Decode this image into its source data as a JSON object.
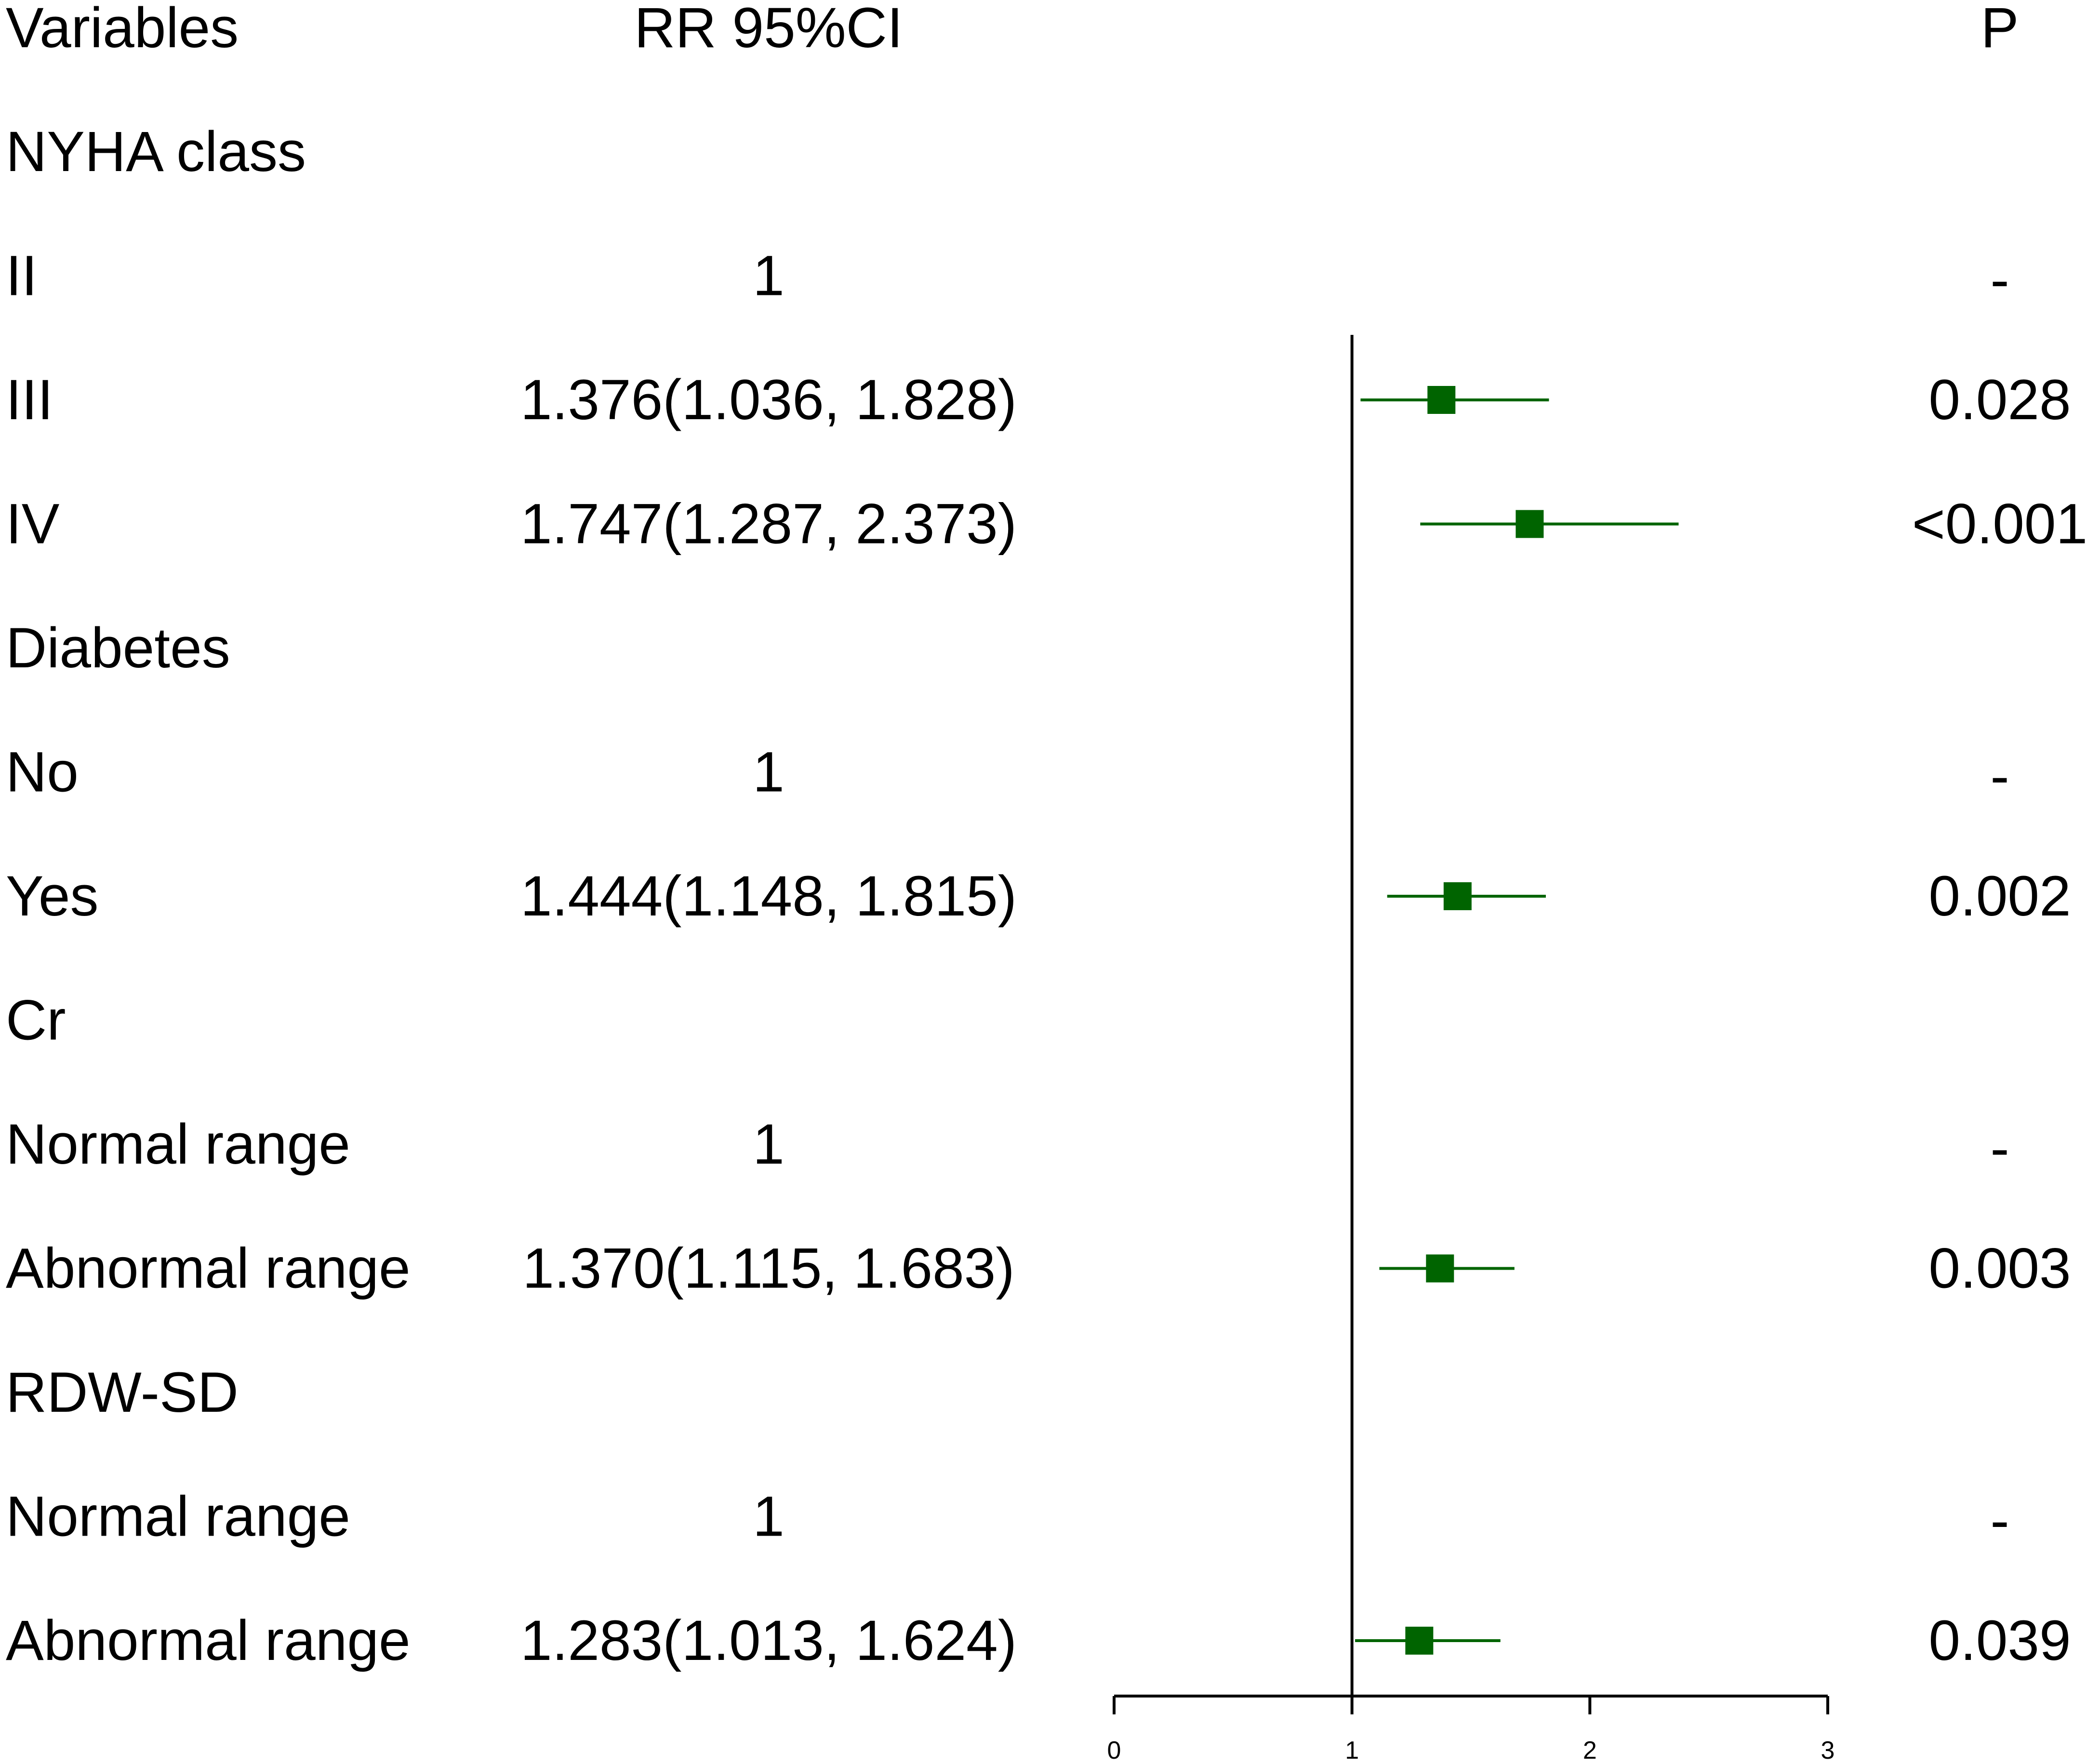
{
  "chart_data": {
    "type": "forest",
    "header": {
      "variables": "Variables",
      "estimate": "RR 95%CI",
      "p": "P"
    },
    "rows": [
      {
        "label": "NYHA class",
        "estimate_text": "",
        "p": "",
        "is_group": true
      },
      {
        "label": "II",
        "estimate_text": "1",
        "p": "-",
        "rr": null
      },
      {
        "label": "III",
        "estimate_text": "1.376(1.036, 1.828)",
        "p": "0.028",
        "rr": 1.376,
        "lower": 1.036,
        "upper": 1.828
      },
      {
        "label": "IV",
        "estimate_text": "1.747(1.287, 2.373)",
        "p": "<0.001",
        "rr": 1.747,
        "lower": 1.287,
        "upper": 2.373
      },
      {
        "label": "Diabetes",
        "estimate_text": "",
        "p": "",
        "is_group": true
      },
      {
        "label": "No",
        "estimate_text": "1",
        "p": "-",
        "rr": null
      },
      {
        "label": "Yes",
        "estimate_text": "1.444(1.148, 1.815)",
        "p": "0.002",
        "rr": 1.444,
        "lower": 1.148,
        "upper": 1.815
      },
      {
        "label": "Cr",
        "estimate_text": "",
        "p": "",
        "is_group": true
      },
      {
        "label": "Normal range",
        "estimate_text": "1",
        "p": "-",
        "rr": null
      },
      {
        "label": "Abnormal range",
        "estimate_text": "1.370(1.115, 1.683)",
        "p": "0.003",
        "rr": 1.37,
        "lower": 1.115,
        "upper": 1.683
      },
      {
        "label": "RDW-SD",
        "estimate_text": "",
        "p": "",
        "is_group": true
      },
      {
        "label": "Normal range",
        "estimate_text": "1",
        "p": "-",
        "rr": null
      },
      {
        "label": "Abnormal range",
        "estimate_text": "1.283(1.013, 1.624)",
        "p": "0.039",
        "rr": 1.283,
        "lower": 1.013,
        "upper": 1.624
      }
    ],
    "x_axis": {
      "ticks": [
        "0",
        "1",
        "2",
        "3"
      ],
      "xlim": [
        0,
        3
      ]
    },
    "reference_line": 1,
    "marker_color": "#006400",
    "marker_shape": "square",
    "grid": false
  }
}
